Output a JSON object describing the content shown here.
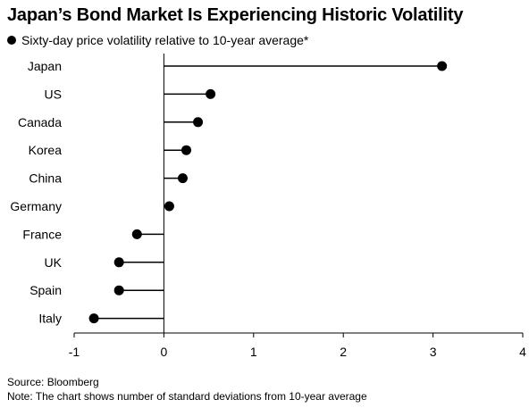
{
  "chart_data": {
    "type": "lollipop",
    "title": "Japan’s Bond Market Is Experiencing Historic Volatility",
    "legend": "Sixty-day price volatility relative to 10-year average*",
    "legend_placement": "top-left",
    "categories": [
      "Japan",
      "US",
      "Canada",
      "Korea",
      "China",
      "Germany",
      "France",
      "UK",
      "Spain",
      "Italy"
    ],
    "values": [
      3.1,
      0.52,
      0.38,
      0.25,
      0.21,
      0.06,
      -0.3,
      -0.5,
      -0.5,
      -0.78
    ],
    "xticks": [
      "-1",
      "0",
      "1",
      "2",
      "3",
      "4"
    ],
    "xlim": [
      -1,
      4
    ],
    "grid": false
  },
  "source": "Source: Bloomberg",
  "note": "Note: The chart shows number of standard deviations from 10-year average",
  "colors": {
    "marker": "#000000",
    "axis": "#000000"
  }
}
